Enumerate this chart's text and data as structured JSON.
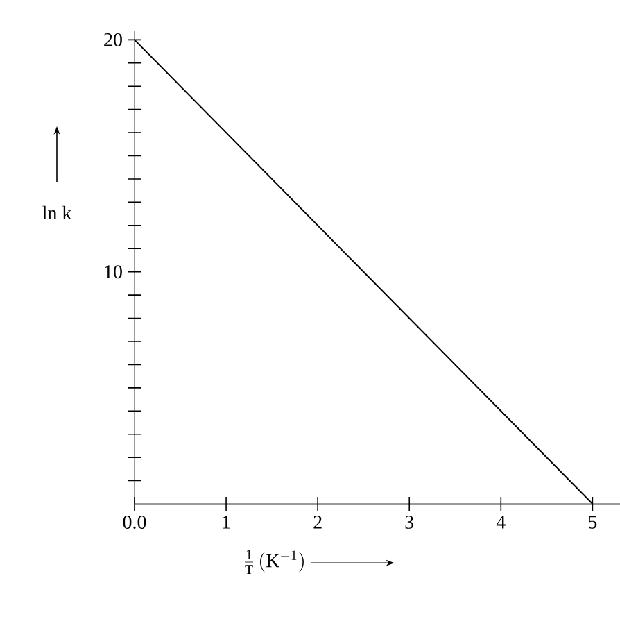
{
  "chart_data": {
    "type": "line",
    "xlabel": "\\frac{1}{\\mathrm{T}}\\,(\\mathrm{K}^{-1})",
    "ylabel": "ln k",
    "x": [
      0,
      5
    ],
    "values": [
      20,
      0
    ],
    "color": "#000000",
    "xlim": [
      0,
      5.3
    ],
    "ylim": [
      0,
      20.4
    ],
    "xticks": [
      {
        "value": 0,
        "label": "0.0"
      },
      1,
      2,
      3,
      4,
      5
    ],
    "yticks": [
      {
        "value": 1,
        "label": null
      },
      {
        "value": 2,
        "label": null
      },
      {
        "value": 3,
        "label": null
      },
      {
        "value": 4,
        "label": null
      },
      {
        "value": 5,
        "label": null
      },
      {
        "value": 6,
        "label": null
      },
      {
        "value": 7,
        "label": null
      },
      {
        "value": 8,
        "label": null
      },
      {
        "value": 9,
        "label": null
      },
      10,
      {
        "value": 11,
        "label": null
      },
      {
        "value": 12,
        "label": null
      },
      {
        "value": 13,
        "label": null
      },
      {
        "value": 14,
        "label": null
      },
      {
        "value": 15,
        "label": null
      },
      {
        "value": 16,
        "label": null
      },
      {
        "value": 17,
        "label": null
      },
      {
        "value": 18,
        "label": null
      },
      {
        "value": 19,
        "label": null
      },
      20
    ],
    "grid": false
  }
}
